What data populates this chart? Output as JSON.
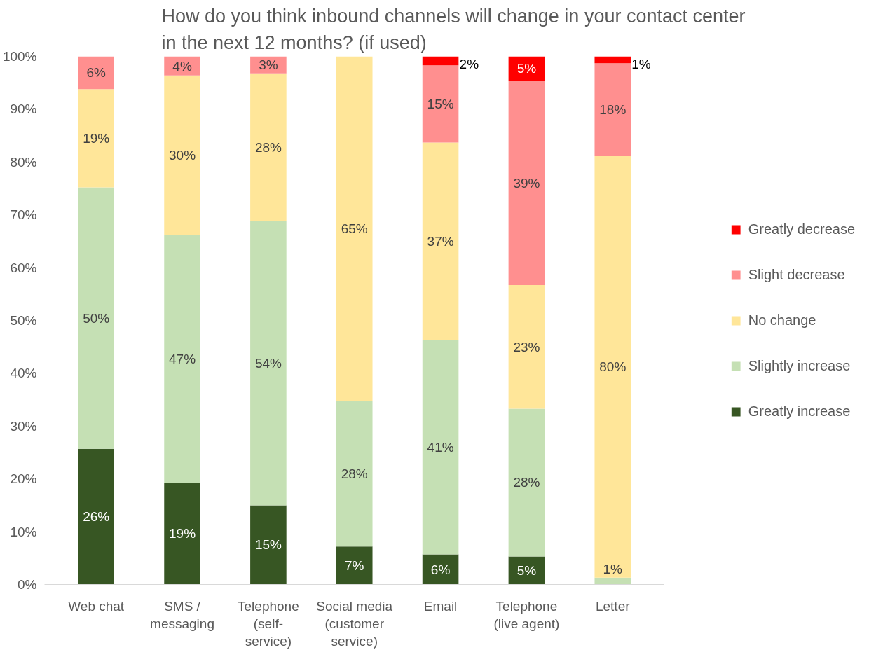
{
  "chart_data": {
    "type": "bar",
    "stacked": true,
    "title": "How do you think inbound channels will change in your contact center\nin the next 12 months? (if used)",
    "categories": [
      "Web chat",
      "SMS / messaging",
      "Telephone (self-service)",
      "Social media (customer service)",
      "Email",
      "Telephone (live agent)",
      "Letter"
    ],
    "series": [
      {
        "name": "Greatly increase",
        "color": "#375623",
        "values": [
          25.7,
          19.3,
          15.0,
          7.2,
          5.7,
          5.3,
          null
        ],
        "value_labels": [
          "26%",
          "19%",
          "15%",
          "7%",
          "6%",
          "5%",
          null
        ]
      },
      {
        "name": "Slightly increase",
        "color": "#c5e0b4",
        "values": [
          49.5,
          46.9,
          53.8,
          27.6,
          40.6,
          28.0,
          1.3
        ],
        "value_labels": [
          "50%",
          "47%",
          "54%",
          "28%",
          "41%",
          "28%",
          "1%"
        ]
      },
      {
        "name": "No change",
        "color": "#ffe699",
        "values": [
          18.6,
          30.2,
          28.0,
          65.2,
          37.4,
          23.4,
          79.8
        ],
        "value_labels": [
          "19%",
          "30%",
          "28%",
          "65%",
          "37%",
          "23%",
          "80%"
        ]
      },
      {
        "name": "Slight decrease",
        "color": "#ff8f8f",
        "values": [
          6.2,
          3.6,
          3.2,
          null,
          14.6,
          38.7,
          17.6
        ],
        "value_labels": [
          "6%",
          "4%",
          "3%",
          null,
          "15%",
          "39%",
          "18%"
        ]
      },
      {
        "name": "Greatly decrease",
        "color": "#ff0000",
        "values": [
          null,
          null,
          null,
          null,
          1.7,
          4.6,
          1.3
        ],
        "value_labels": [
          null,
          null,
          null,
          null,
          "2%",
          "5%",
          "1%"
        ]
      }
    ],
    "ylim": [
      0,
      100
    ],
    "yticks": [
      {
        "value": 0,
        "label": "0%"
      },
      {
        "value": 10,
        "label": "10%"
      },
      {
        "value": 20,
        "label": "20%"
      },
      {
        "value": 30,
        "label": "30%"
      },
      {
        "value": 40,
        "label": "40%"
      },
      {
        "value": 50,
        "label": "50%"
      },
      {
        "value": 60,
        "label": "60%"
      },
      {
        "value": 70,
        "label": "70%"
      },
      {
        "value": 80,
        "label": "80%"
      },
      {
        "value": 90,
        "label": "90%"
      },
      {
        "value": 100,
        "label": "100%"
      }
    ],
    "grid": false,
    "legend": "right"
  }
}
